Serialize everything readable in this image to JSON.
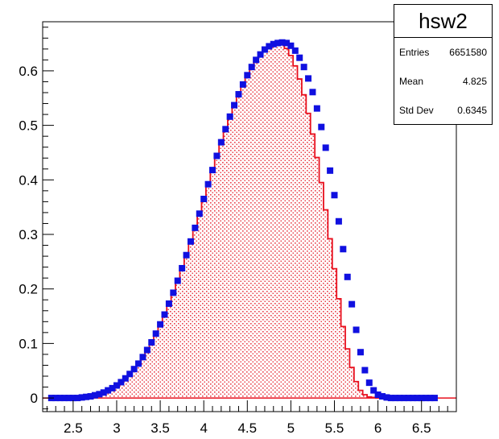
{
  "colors": {
    "fill_hatch": "#e8404a",
    "line": "#e8101e",
    "marker": "#1010e0",
    "frame": "#000000"
  },
  "stats": {
    "title": "hsw2",
    "entries_label": "Entries",
    "entries_value": "6651580",
    "mean_label": "Mean",
    "mean_value": "4.825",
    "std_label": "Std Dev",
    "std_value": "0.6345"
  },
  "chart_data": {
    "type": "histogram",
    "title": "hsw2",
    "xlabel": "",
    "ylabel": "",
    "xlim": [
      2.15,
      6.9
    ],
    "ylim": [
      -0.025,
      0.69
    ],
    "x_ticks": [
      "2.5",
      "3",
      "3.5",
      "4",
      "4.5",
      "5",
      "5.5",
      "6",
      "6.5"
    ],
    "y_ticks": [
      "0",
      "0.1",
      "0.2",
      "0.3",
      "0.4",
      "0.5",
      "0.6"
    ],
    "bin_width": 0.05,
    "series": [
      {
        "style": "filled-step",
        "x": [
          2.25,
          2.3,
          2.35,
          2.4,
          2.45,
          2.5,
          2.55,
          2.6,
          2.65,
          2.7,
          2.75,
          2.8,
          2.85,
          2.9,
          2.95,
          3.0,
          3.05,
          3.1,
          3.15,
          3.2,
          3.25,
          3.3,
          3.35,
          3.4,
          3.45,
          3.5,
          3.55,
          3.6,
          3.65,
          3.7,
          3.75,
          3.8,
          3.85,
          3.9,
          3.95,
          4.0,
          4.05,
          4.1,
          4.15,
          4.2,
          4.25,
          4.3,
          4.35,
          4.4,
          4.45,
          4.5,
          4.55,
          4.6,
          4.65,
          4.7,
          4.75,
          4.8,
          4.85,
          4.9,
          4.95,
          5.0,
          5.05,
          5.1,
          5.15,
          5.2,
          5.25,
          5.3,
          5.35,
          5.4,
          5.45,
          5.5,
          5.55,
          5.6,
          5.65,
          5.7,
          5.75,
          5.8,
          5.85,
          5.9,
          5.95,
          6.0,
          6.05,
          6.1,
          6.15,
          6.2,
          6.25,
          6.3,
          6.35,
          6.4,
          6.45,
          6.5,
          6.55,
          6.6,
          6.65
        ],
        "values": [
          0.0,
          0.0,
          0.0,
          0.0,
          0.0,
          0.0,
          0.0,
          0.001,
          0.002,
          0.003,
          0.005,
          0.007,
          0.01,
          0.014,
          0.018,
          0.023,
          0.029,
          0.036,
          0.044,
          0.053,
          0.063,
          0.075,
          0.088,
          0.102,
          0.118,
          0.135,
          0.153,
          0.173,
          0.193,
          0.215,
          0.238,
          0.262,
          0.287,
          0.312,
          0.338,
          0.365,
          0.392,
          0.418,
          0.444,
          0.469,
          0.493,
          0.516,
          0.537,
          0.557,
          0.575,
          0.592,
          0.607,
          0.62,
          0.63,
          0.639,
          0.645,
          0.649,
          0.651,
          0.648,
          0.641,
          0.628,
          0.609,
          0.585,
          0.556,
          0.522,
          0.484,
          0.441,
          0.395,
          0.345,
          0.292,
          0.237,
          0.182,
          0.131,
          0.09,
          0.056,
          0.03,
          0.014,
          0.006,
          0.002,
          0.001,
          0.0,
          0.0,
          0.0,
          0.0,
          0.0,
          0.0,
          0.0,
          0.0,
          0.0,
          0.0,
          0.0,
          0.0,
          0.0,
          0.0
        ]
      },
      {
        "style": "markers",
        "x": [
          2.25,
          2.3,
          2.35,
          2.4,
          2.45,
          2.5,
          2.55,
          2.6,
          2.65,
          2.7,
          2.75,
          2.8,
          2.85,
          2.9,
          2.95,
          3.0,
          3.05,
          3.1,
          3.15,
          3.2,
          3.25,
          3.3,
          3.35,
          3.4,
          3.45,
          3.5,
          3.55,
          3.6,
          3.65,
          3.7,
          3.75,
          3.8,
          3.85,
          3.9,
          3.95,
          4.0,
          4.05,
          4.1,
          4.15,
          4.2,
          4.25,
          4.3,
          4.35,
          4.4,
          4.45,
          4.5,
          4.55,
          4.6,
          4.65,
          4.7,
          4.75,
          4.8,
          4.85,
          4.9,
          4.95,
          5.0,
          5.05,
          5.1,
          5.15,
          5.2,
          5.25,
          5.3,
          5.35,
          5.4,
          5.45,
          5.5,
          5.55,
          5.6,
          5.65,
          5.7,
          5.75,
          5.8,
          5.85,
          5.9,
          5.95,
          6.0,
          6.05,
          6.1,
          6.15,
          6.2,
          6.25,
          6.3,
          6.35,
          6.4,
          6.45,
          6.5,
          6.55,
          6.6,
          6.65
        ],
        "values": [
          0.0,
          0.0,
          0.0,
          0.0,
          0.0,
          0.0,
          0.0,
          0.001,
          0.002,
          0.003,
          0.005,
          0.007,
          0.01,
          0.014,
          0.018,
          0.023,
          0.029,
          0.036,
          0.044,
          0.053,
          0.063,
          0.075,
          0.088,
          0.102,
          0.118,
          0.135,
          0.153,
          0.173,
          0.193,
          0.215,
          0.238,
          0.262,
          0.287,
          0.312,
          0.338,
          0.365,
          0.392,
          0.418,
          0.444,
          0.469,
          0.493,
          0.516,
          0.537,
          0.557,
          0.575,
          0.592,
          0.607,
          0.62,
          0.63,
          0.639,
          0.645,
          0.649,
          0.651,
          0.652,
          0.651,
          0.646,
          0.637,
          0.624,
          0.607,
          0.586,
          0.561,
          0.531,
          0.497,
          0.459,
          0.417,
          0.372,
          0.324,
          0.273,
          0.222,
          0.172,
          0.125,
          0.084,
          0.051,
          0.028,
          0.014,
          0.006,
          0.003,
          0.001,
          0.0,
          0.0,
          0.0,
          0.0,
          0.0,
          0.0,
          0.0,
          0.0,
          0.0,
          0.0,
          0.0
        ]
      }
    ]
  }
}
